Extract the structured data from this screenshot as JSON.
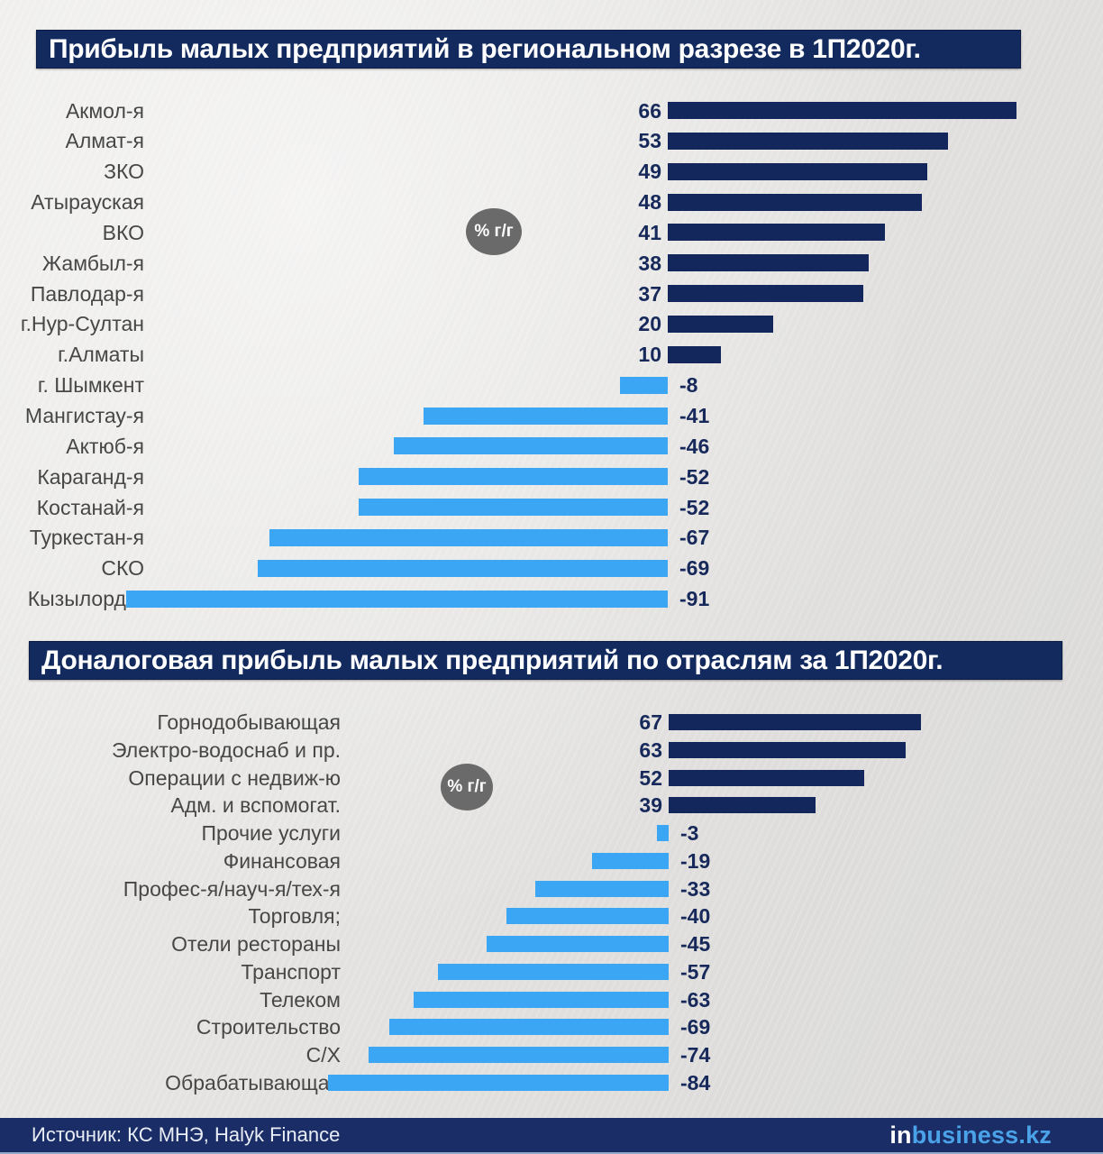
{
  "page": {
    "title1": "Прибыль малых предприятий в региональном разрезе в 1П2020г.",
    "title2": "Доналоговая прибыль малых предприятий по отраслям за 1П2020г."
  },
  "chart_data": [
    {
      "type": "bar",
      "orientation": "horizontal",
      "title": "Прибыль малых предприятий в региональном разрезе в 1П2020г.",
      "unit": "% г/г",
      "categories": [
        "Акмол-я",
        "Алмат-я",
        "ЗКО",
        "Атырауская",
        "ВКО",
        "Жамбыл-я",
        "Павлодар-я",
        "г.Нур-Султан",
        "г.Алматы",
        "г. Шымкент",
        "Мангистау-я",
        "Актюб-я",
        "Караганд-я",
        "Костанай-я",
        "Туркестан-я",
        "СКО",
        "Кызылорд-я"
      ],
      "values": [
        66,
        53,
        49,
        48,
        41,
        38,
        37,
        20,
        10,
        -8,
        -41,
        -46,
        -52,
        -52,
        -67,
        -69,
        -91
      ],
      "positive_color": "#13275c",
      "negative_color": "#3ba7f4",
      "value_labels_shown": true,
      "axis_shown": false
    },
    {
      "type": "bar",
      "orientation": "horizontal",
      "title": "Доналоговая прибыль малых предприятий по отраслям за 1П2020г.",
      "unit": "% г/г",
      "categories": [
        "Горнодобывающая",
        "Электро-водоснаб и пр.",
        "Операции с недвиж-ю",
        "Адм. и вспомогат.",
        "Прочие услуги",
        "Финансовая",
        "Профес-я/науч-я/тех-я",
        "Торговля;",
        "Отели рестораны",
        "Транспорт",
        "Телеком",
        "Строительство",
        "С/Х",
        "Обрабатывающая"
      ],
      "values": [
        67,
        63,
        52,
        39,
        -3,
        -19,
        -33,
        -40,
        -45,
        -57,
        -63,
        -69,
        -74,
        -84
      ],
      "positive_color": "#13275c",
      "negative_color": "#3ba7f4",
      "value_labels_shown": true,
      "axis_shown": false
    }
  ],
  "colors": {
    "title_bg": "#132a5e",
    "footer_bg": "#1b2d66",
    "badge_bg": "#6a6a6a",
    "positive_bar": "#13275c",
    "negative_bar": "#3ba7f4",
    "logo_blue": "#4aa3e8"
  },
  "footer": {
    "source": "Источник: КС МНЭ, Halyk Finance",
    "logo_prefix": "in",
    "logo_suffix": "business.kz"
  }
}
